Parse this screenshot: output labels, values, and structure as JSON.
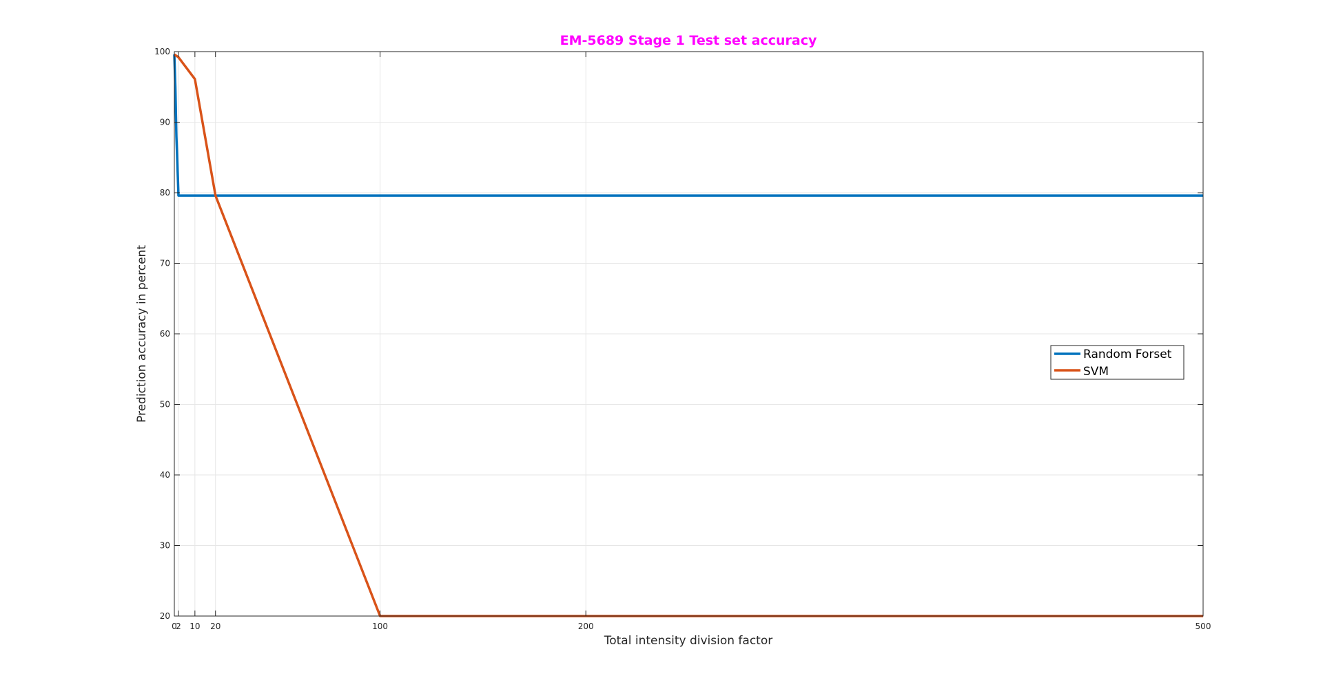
{
  "chart_data": {
    "type": "line",
    "title": "EM-5689 Stage 1 Test set accuracy",
    "title_color": "#ff00ff",
    "xlabel": "Total intensity division factor",
    "ylabel": "Prediction accuracy in percent",
    "xlim": [
      0,
      500
    ],
    "ylim": [
      20,
      100
    ],
    "xticks": [
      0,
      2,
      10,
      20,
      100,
      200,
      500
    ],
    "xtick_labels": [
      "0",
      "2",
      "10",
      "20",
      "100",
      "200",
      "500"
    ],
    "yticks": [
      20,
      30,
      40,
      50,
      60,
      70,
      80,
      90,
      100
    ],
    "ytick_labels": [
      "20",
      "30",
      "40",
      "50",
      "60",
      "70",
      "80",
      "90",
      "100"
    ],
    "grid": true,
    "legend_position": "right",
    "series": [
      {
        "name": "Random Forset",
        "color": "#0072bd",
        "x": [
          0,
          0.5,
          1,
          1.5,
          2,
          10,
          20,
          100,
          200,
          500
        ],
        "y": [
          99.6,
          95,
          88,
          84,
          79.6,
          79.6,
          79.6,
          79.6,
          79.6,
          79.6
        ]
      },
      {
        "name": "SVM",
        "color": "#d95319",
        "x": [
          0,
          2,
          10,
          20,
          100,
          200,
          500
        ],
        "y": [
          99.6,
          99.2,
          96.1,
          79.6,
          20,
          20,
          20
        ]
      }
    ]
  }
}
